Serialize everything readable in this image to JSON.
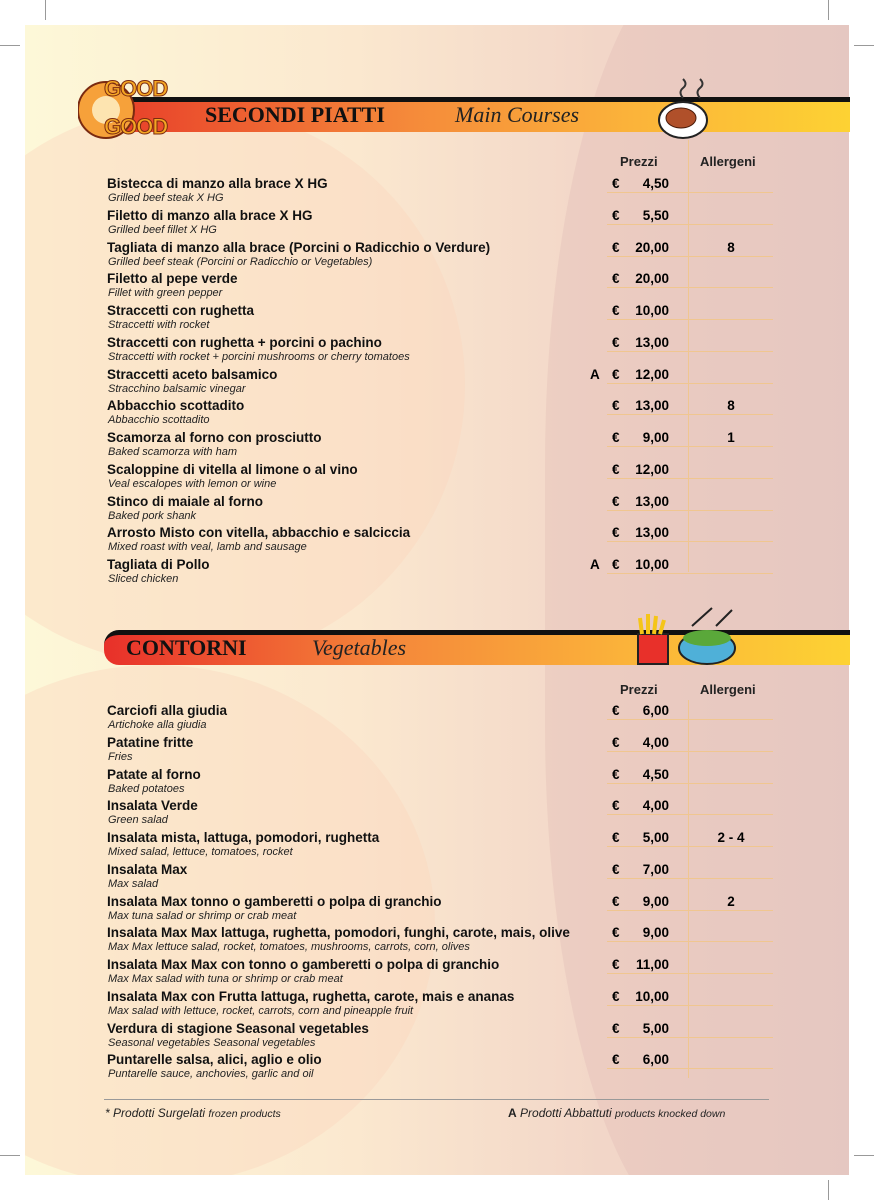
{
  "logo": {
    "line1": "GOOD",
    "line2": "GOOD"
  },
  "secondi": {
    "title": "SECONDI PIATTI",
    "subtitle": "Main Courses",
    "col_price": "Prezzi",
    "col_allergens": "Allergeni",
    "icon": "grilled-steak-plate-icon",
    "items": [
      {
        "name": "Bistecca di manzo alla brace X HG",
        "en": "Grilled beef steak X HG",
        "flag": "",
        "currency": "€",
        "price": "4,50",
        "allergens": ""
      },
      {
        "name": "Filetto di manzo alla brace X HG",
        "en": "Grilled beef fillet X HG",
        "flag": "",
        "currency": "€",
        "price": "5,50",
        "allergens": ""
      },
      {
        "name": "Tagliata di manzo alla brace (Porcini o Radicchio o Verdure)",
        "en": "Grilled beef steak (Porcini or Radicchio or Vegetables)",
        "flag": "",
        "currency": "€",
        "price": "20,00",
        "allergens": "8"
      },
      {
        "name": "Filetto al pepe verde",
        "en": "Fillet with green pepper",
        "flag": "",
        "currency": "€",
        "price": "20,00",
        "allergens": ""
      },
      {
        "name": "Straccetti con rughetta",
        "en": "Straccetti with rocket",
        "flag": "",
        "currency": "€",
        "price": "10,00",
        "allergens": ""
      },
      {
        "name": "Straccetti con rughetta + porcini o pachino",
        "en": "Straccetti with rocket + porcini mushrooms or cherry tomatoes",
        "flag": "",
        "currency": "€",
        "price": "13,00",
        "allergens": ""
      },
      {
        "name": "Straccetti aceto balsamico",
        "en": "Stracchino balsamic vinegar",
        "flag": "A",
        "currency": "€",
        "price": "12,00",
        "allergens": ""
      },
      {
        "name": "Abbacchio scottadito",
        "en": "Abbacchio scottadito",
        "flag": "",
        "currency": "€",
        "price": "13,00",
        "allergens": "8"
      },
      {
        "name": "Scamorza al forno con prosciutto",
        "en": "Baked scamorza with ham",
        "flag": "",
        "currency": "€",
        "price": "9,00",
        "allergens": "1"
      },
      {
        "name": "Scaloppine di vitella al limone o al vino",
        "en": "Veal escalopes with lemon or wine",
        "flag": "",
        "currency": "€",
        "price": "12,00",
        "allergens": ""
      },
      {
        "name": "Stinco di maiale al forno",
        "en": "Baked pork shank",
        "flag": "",
        "currency": "€",
        "price": "13,00",
        "allergens": ""
      },
      {
        "name": "Arrosto Misto con vitella, abbacchio e salciccia",
        "en": "Mixed roast with veal, lamb and sausage",
        "flag": "",
        "currency": "€",
        "price": "13,00",
        "allergens": ""
      },
      {
        "name": "Tagliata di Pollo",
        "en": "Sliced chicken",
        "flag": "A",
        "currency": "€",
        "price": "10,00",
        "allergens": ""
      }
    ]
  },
  "contorni": {
    "title": "CONTORNI",
    "subtitle": "Vegetables",
    "col_price": "Prezzi",
    "col_allergens": "Allergeni",
    "icon": "fries-and-salad-icon",
    "items": [
      {
        "name": "Carciofi alla giudia",
        "en": "Artichoke alla giudia",
        "flag": "",
        "currency": "€",
        "price": "6,00",
        "allergens": ""
      },
      {
        "name": "Patatine fritte",
        "en": "Fries",
        "flag": "",
        "currency": "€",
        "price": "4,00",
        "allergens": ""
      },
      {
        "name": "Patate al forno",
        "en": "Baked potatoes",
        "flag": "",
        "currency": "€",
        "price": "4,50",
        "allergens": ""
      },
      {
        "name": "Insalata Verde",
        "en": "Green salad",
        "flag": "",
        "currency": "€",
        "price": "4,00",
        "allergens": ""
      },
      {
        "name": "Insalata mista, lattuga, pomodori, rughetta",
        "en": "Mixed salad, lettuce, tomatoes, rocket",
        "flag": "",
        "currency": "€",
        "price": "5,00",
        "allergens": "2 - 4"
      },
      {
        "name": "Insalata Max",
        "en": "Max salad",
        "flag": "",
        "currency": "€",
        "price": "7,00",
        "allergens": ""
      },
      {
        "name": "Insalata Max tonno o gamberetti o polpa di granchio",
        "en": "Max tuna salad or shrimp or crab meat",
        "flag": "",
        "currency": "€",
        "price": "9,00",
        "allergens": "2"
      },
      {
        "name": "Insalata Max Max lattuga, rughetta, pomodori, funghi, carote, mais, olive",
        "en": "Max Max lettuce salad, rocket, tomatoes, mushrooms, carrots, corn, olives",
        "flag": "",
        "currency": "€",
        "price": "9,00",
        "allergens": ""
      },
      {
        "name": "Insalata Max Max con tonno o gamberetti o polpa di granchio",
        "en": "Max Max salad with tuna or shrimp or crab meat",
        "flag": "",
        "currency": "€",
        "price": "11,00",
        "allergens": ""
      },
      {
        "name": "Insalata Max con Frutta lattuga, rughetta, carote, mais e ananas",
        "en": "Max salad with lettuce, rocket, carrots, corn and pineapple fruit",
        "flag": "",
        "currency": "€",
        "price": "10,00",
        "allergens": ""
      },
      {
        "name": "Verdura di stagione Seasonal vegetables",
        "en": "Seasonal vegetables Seasonal vegetables",
        "flag": "",
        "currency": "€",
        "price": "5,00",
        "allergens": ""
      },
      {
        "name": "Puntarelle salsa, alici, aglio e olio",
        "en": "Puntarelle sauce, anchovies, garlic and oil",
        "flag": "",
        "currency": "€",
        "price": "6,00",
        "allergens": ""
      }
    ]
  },
  "footer": {
    "frozen_mark": "*",
    "frozen_it": "Prodotti Surgelati",
    "frozen_en": "frozen products",
    "a_mark": "A",
    "a_it": "Prodotti Abbattuti",
    "a_en": "products knocked down"
  }
}
